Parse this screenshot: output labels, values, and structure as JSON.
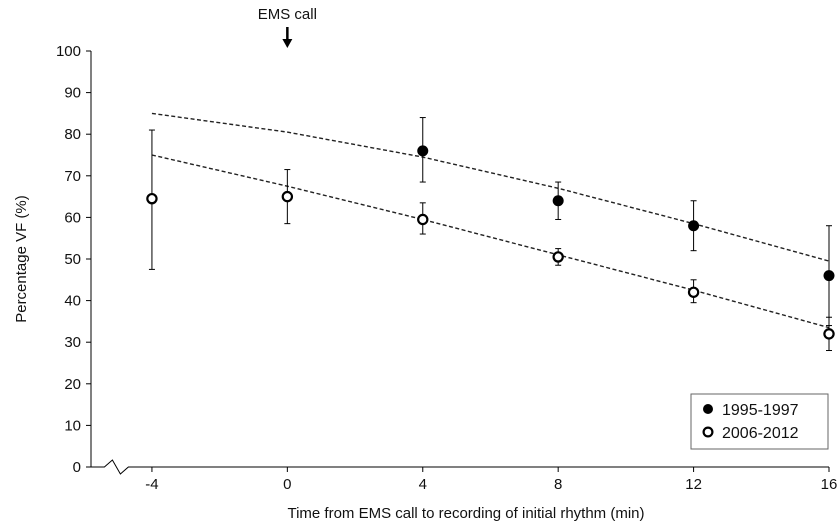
{
  "chart_data": {
    "type": "scatter",
    "xlabel": "Time from EMS call to recording of initial rhythm (min)",
    "ylabel": "Percentage VF (%)",
    "annotation": "EMS call",
    "annotation_x": 0,
    "xlim": [
      -5.8,
      16
    ],
    "ylim": [
      0,
      100
    ],
    "x_ticks": [
      -4,
      0,
      4,
      8,
      12,
      16
    ],
    "y_ticks": [
      0,
      10,
      20,
      30,
      40,
      50,
      60,
      70,
      80,
      90,
      100
    ],
    "axis_break": true,
    "grid": false,
    "legend_position": "bottom-right",
    "series": [
      {
        "name": "1995-1997",
        "marker": "filled-circle",
        "points": [
          {
            "x": 4,
            "y": 76,
            "err_low": 68.5,
            "err_high": 84
          },
          {
            "x": 8,
            "y": 64,
            "err_low": 59.5,
            "err_high": 68.5
          },
          {
            "x": 12,
            "y": 58,
            "err_low": 52,
            "err_high": 64
          },
          {
            "x": 16,
            "y": 46,
            "err_low": 34,
            "err_high": 58
          }
        ],
        "trend": [
          {
            "x": -4,
            "y": 85
          },
          {
            "x": 0,
            "y": 80.5
          },
          {
            "x": 4,
            "y": 74.5
          },
          {
            "x": 8,
            "y": 67
          },
          {
            "x": 12,
            "y": 58.5
          },
          {
            "x": 16,
            "y": 49.5
          }
        ]
      },
      {
        "name": "2006-2012",
        "marker": "open-circle",
        "points": [
          {
            "x": -4,
            "y": 64.5,
            "err_low": 47.5,
            "err_high": 81
          },
          {
            "x": 0,
            "y": 65,
            "err_low": 58.5,
            "err_high": 71.5
          },
          {
            "x": 4,
            "y": 59.5,
            "err_low": 56,
            "err_high": 63.5
          },
          {
            "x": 8,
            "y": 50.5,
            "err_low": 48.5,
            "err_high": 52.5
          },
          {
            "x": 12,
            "y": 42,
            "err_low": 39.5,
            "err_high": 45
          },
          {
            "x": 16,
            "y": 32,
            "err_low": 28,
            "err_high": 36
          }
        ],
        "trend": [
          {
            "x": -4,
            "y": 75
          },
          {
            "x": 0,
            "y": 67.5
          },
          {
            "x": 4,
            "y": 59.5
          },
          {
            "x": 8,
            "y": 51
          },
          {
            "x": 12,
            "y": 42.5
          },
          {
            "x": 16,
            "y": 33.5
          }
        ]
      }
    ]
  }
}
